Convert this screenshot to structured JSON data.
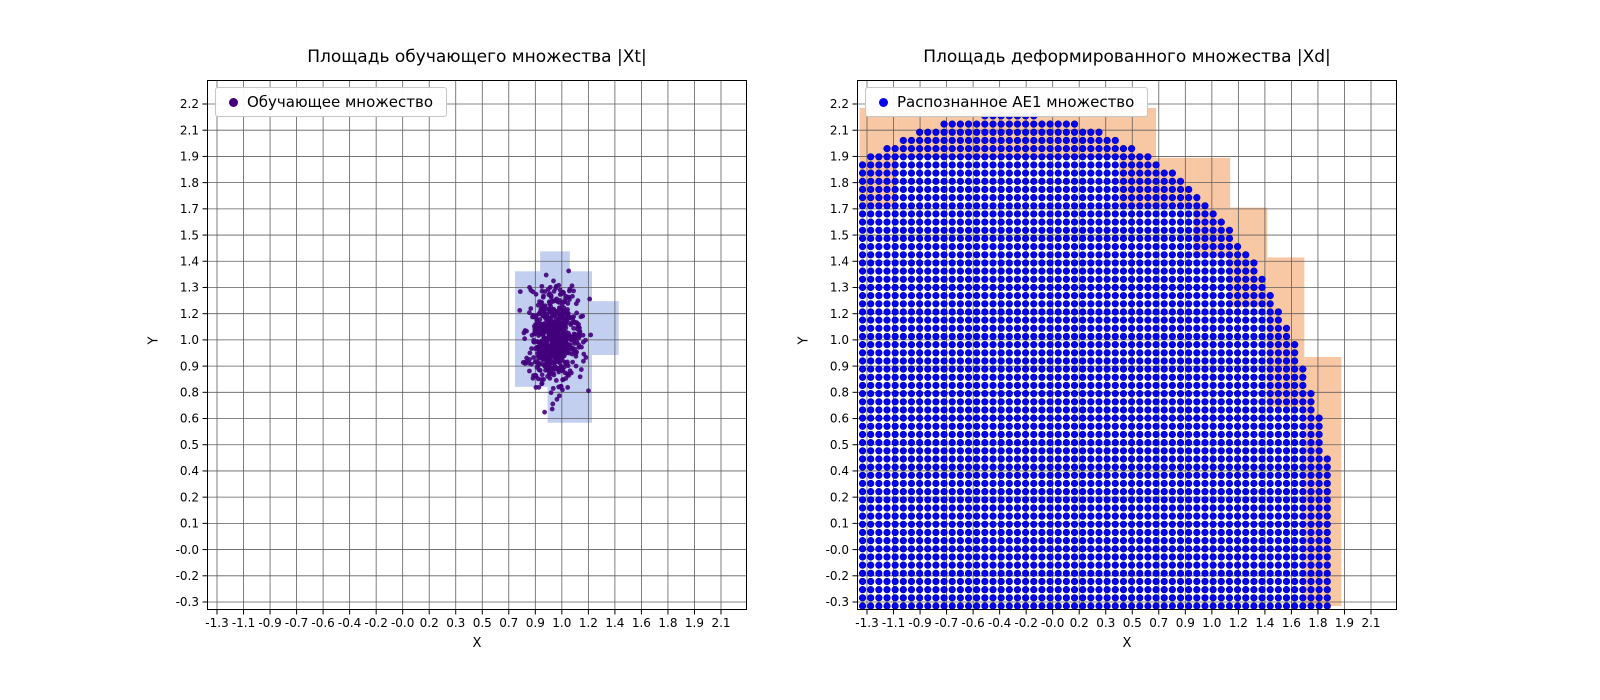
{
  "chart_data": [
    {
      "type": "scatter",
      "title": "Площадь обучающего множества |Xt|",
      "xlabel": "X",
      "ylabel": "Y",
      "x_range": [
        -1.3,
        2.1
      ],
      "y_range": [
        -0.3,
        2.2
      ],
      "grid": true,
      "legend_position": "upper left",
      "x_tick_labels": [
        "-1.3",
        "-1.1",
        "-0.9",
        "-0.7",
        "-0.6",
        "-0.4",
        "-0.2",
        "-0.0",
        "0.2",
        "0.3",
        "0.5",
        "0.7",
        "0.9",
        "1.0",
        "1.2",
        "1.4",
        "1.6",
        "1.8",
        "1.9",
        "2.1"
      ],
      "y_tick_labels": [
        "-0.3",
        "-0.2",
        "-0.0",
        "0.1",
        "0.2",
        "0.4",
        "0.5",
        "0.6",
        "0.8",
        "0.9",
        "1.0",
        "1.2",
        "1.3",
        "1.4",
        "1.5",
        "1.7",
        "1.8",
        "1.9",
        "2.1",
        "2.2"
      ],
      "legend": {
        "label": "Обучающее множество",
        "marker_color": "#42007d"
      },
      "shaded_cells": {
        "color": "rgba(110,140,220,0.42)",
        "rects": [
          [
            0.71,
            0.78,
            1.23,
            1.36
          ],
          [
            0.88,
            1.36,
            1.08,
            1.46
          ],
          [
            0.93,
            0.6,
            1.23,
            0.78
          ],
          [
            1.23,
            0.94,
            1.41,
            1.21
          ]
        ]
      },
      "cluster": {
        "center": [
          0.97,
          1.03
        ],
        "sigma": [
          0.09,
          0.115
        ],
        "count": 650,
        "seed": 42,
        "color": "#42007d",
        "radius_px": 2.4
      }
    },
    {
      "type": "scatter",
      "title": "Площадь деформированного множества |Xd|",
      "xlabel": "X",
      "ylabel": "Y",
      "x_range": [
        -1.3,
        2.1
      ],
      "y_range": [
        -0.3,
        2.2
      ],
      "grid": true,
      "legend_position": "upper left",
      "x_tick_labels": [
        "-1.3",
        "-1.1",
        "-0.9",
        "-0.7",
        "-0.6",
        "-0.4",
        "-0.2",
        "-0.0",
        "0.2",
        "0.3",
        "0.5",
        "0.7",
        "0.9",
        "1.0",
        "1.2",
        "1.4",
        "1.6",
        "1.8",
        "1.9",
        "2.1"
      ],
      "y_tick_labels": [
        "-0.3",
        "-0.2",
        "-0.0",
        "0.1",
        "0.2",
        "0.4",
        "0.5",
        "0.6",
        "0.8",
        "0.9",
        "1.0",
        "1.2",
        "1.3",
        "1.4",
        "1.5",
        "1.7",
        "1.8",
        "1.9",
        "2.1",
        "2.2"
      ],
      "legend": {
        "label": "Распознанное AE1 множество",
        "marker_color": "#0404f0"
      },
      "region": {
        "shape": "circle",
        "center": [
          -0.34,
          -0.05
        ],
        "radius": 2.2,
        "x_start": -1.33,
        "y_start": -0.32,
        "x_step": 0.055,
        "y_step": 0.041,
        "color": "#0404f0",
        "edge_color": "#000099",
        "radius_px": 3.3
      },
      "staircase": {
        "color": "#f8c7a4",
        "cell": 0.25,
        "x_start": -1.35,
        "y_start": -0.32
      }
    }
  ]
}
